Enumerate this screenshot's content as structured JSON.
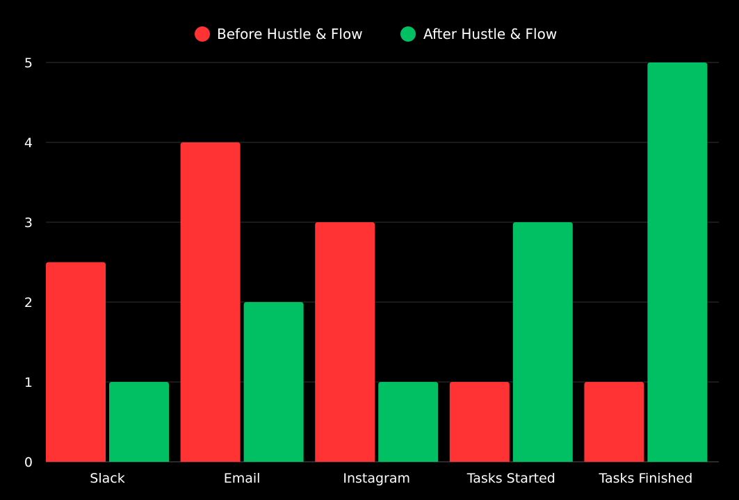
{
  "chart_data": {
    "type": "bar",
    "categories": [
      "Slack",
      "Email",
      "Instagram",
      "Tasks Started",
      "Tasks Finished"
    ],
    "series": [
      {
        "name": "Before Hustle & Flow",
        "color": "#ff3333",
        "values": [
          2.5,
          4,
          3,
          1,
          1
        ]
      },
      {
        "name": "After Hustle & Flow",
        "color": "#00c064",
        "values": [
          1,
          2,
          1,
          3,
          5
        ]
      }
    ],
    "y_ticks": [
      "0",
      "1",
      "2",
      "3",
      "4",
      "5"
    ],
    "ylim": [
      0,
      5
    ],
    "grid": true,
    "legend_position": "top-center",
    "background_color": "#000000",
    "gridline_color": "#333333",
    "text_color": "#ffffff"
  }
}
